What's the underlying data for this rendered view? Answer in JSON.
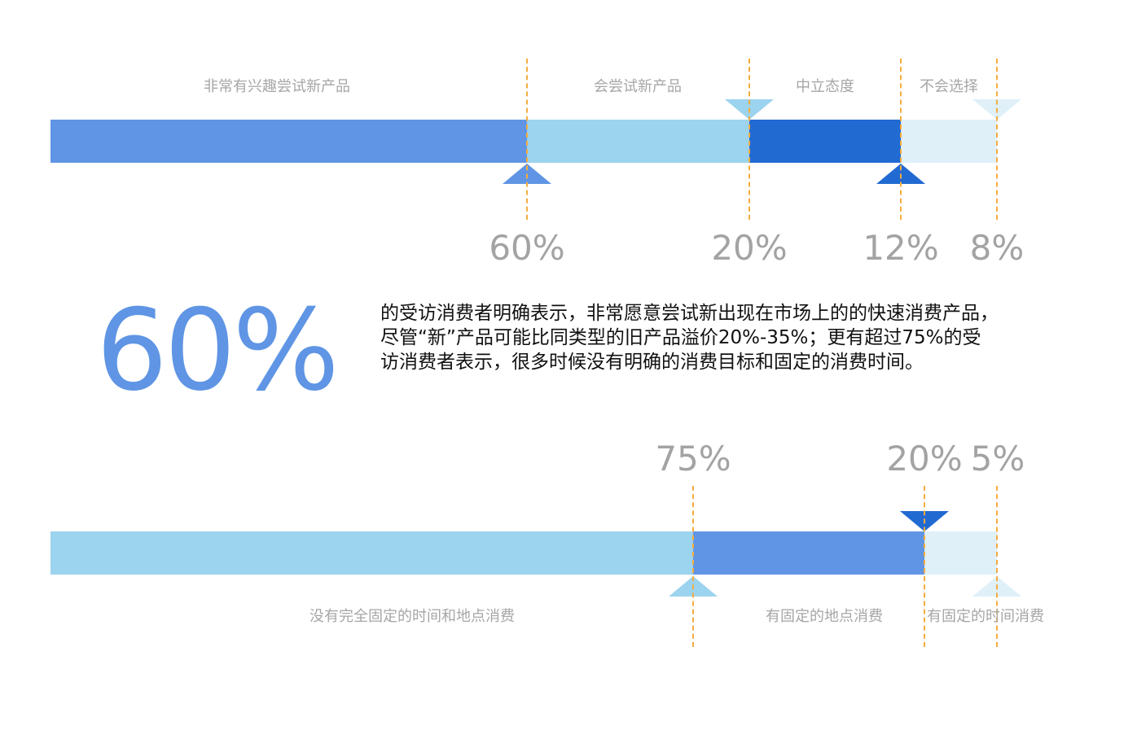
{
  "colors": {
    "blue_mid": "#5f95e4",
    "blue_light": "#9cd3ee",
    "blue_dark": "#216ad2",
    "blue_pale": "#dff0f9",
    "marker": "#f5ac3e",
    "gray_text": "#a6a6a6"
  },
  "bar1": {
    "segments": [
      {
        "label": "非常有兴趣尝试新产品",
        "percent": "60%",
        "value": 60
      },
      {
        "label": "会尝试新产品",
        "percent": "20%",
        "value": 20
      },
      {
        "label": "中立态度",
        "percent": "12%",
        "value": 12
      },
      {
        "label": "不会选择",
        "percent": "8%",
        "value": 8
      }
    ]
  },
  "highlight": {
    "big_number": "60%",
    "description": "的受访消费者明确表示，非常愿意尝试新出现在市场上的的快速消费产品，尽管“新”产品可能比同类型的旧产品溢价20%-35%；更有超过75%的受访消费者表示，很多时候没有明确的消费目标和固定的消费时间。"
  },
  "bar2": {
    "segments": [
      {
        "label": "没有完全固定的时间和地点消费",
        "percent": "75%",
        "value": 75
      },
      {
        "label": "有固定的地点消费",
        "percent": "20%",
        "value": 20
      },
      {
        "label": "有固定的时间消费",
        "percent": "5%",
        "value": 5
      }
    ]
  }
}
